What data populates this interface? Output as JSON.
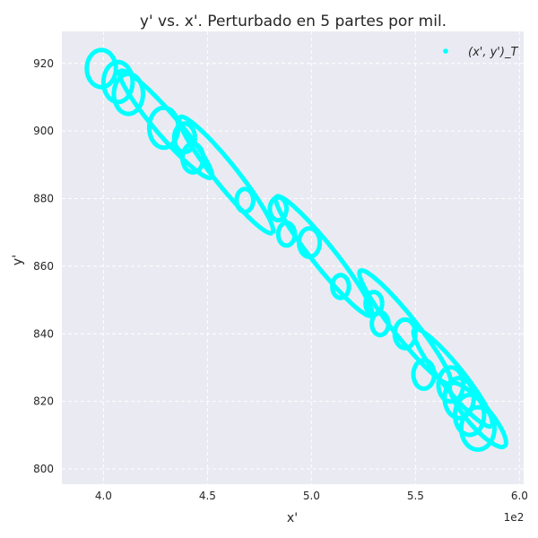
{
  "chart_data": {
    "type": "scatter",
    "title": "y' vs. x'. Perturbado en 5 partes por mil.",
    "xlabel": "x'",
    "ylabel": "y'",
    "x_offset_text": "1e2",
    "xlim": [
      3.8,
      6.02
    ],
    "ylim": [
      795.5,
      929.5
    ],
    "xticks": [
      "4.0",
      "4.5",
      "5.0",
      "5.5",
      "6.0"
    ],
    "yticks": [
      "800",
      "820",
      "840",
      "860",
      "880",
      "900",
      "920"
    ],
    "grid": true,
    "legend_position": "top-right",
    "series": [
      {
        "name": "(x', y')_T",
        "color": "#00FFFF",
        "loops": [
          {
            "cx": 3.99,
            "cy": 918.5,
            "r": 0.07,
            "sy": 2.6
          },
          {
            "cx": 4.07,
            "cy": 914.5,
            "r": 0.07,
            "sy": 2.8
          },
          {
            "cx": 4.12,
            "cy": 911.0,
            "r": 0.07,
            "sy": 2.8
          },
          {
            "cx": 4.29,
            "cy": 901.0,
            "r": 0.07,
            "sy": 2.8
          },
          {
            "cx": 4.39,
            "cy": 898.0,
            "r": 0.05,
            "sy": 2.8
          },
          {
            "cx": 4.43,
            "cy": 892.0,
            "r": 0.05,
            "sy": 2.8
          },
          {
            "cx": 4.68,
            "cy": 879.5,
            "r": 0.04,
            "sy": 2.8
          },
          {
            "cx": 4.84,
            "cy": 877.0,
            "r": 0.04,
            "sy": 2.8
          },
          {
            "cx": 4.88,
            "cy": 869.5,
            "r": 0.04,
            "sy": 2.8
          },
          {
            "cx": 4.99,
            "cy": 867.0,
            "r": 0.05,
            "sy": 2.8
          },
          {
            "cx": 5.14,
            "cy": 854.0,
            "r": 0.04,
            "sy": 2.8
          },
          {
            "cx": 5.3,
            "cy": 849.0,
            "r": 0.04,
            "sy": 2.8
          },
          {
            "cx": 5.33,
            "cy": 843.0,
            "r": 0.04,
            "sy": 2.8
          },
          {
            "cx": 5.45,
            "cy": 840.0,
            "r": 0.05,
            "sy": 2.8
          },
          {
            "cx": 5.54,
            "cy": 828.0,
            "r": 0.05,
            "sy": 2.8
          },
          {
            "cx": 5.67,
            "cy": 825.0,
            "r": 0.06,
            "sy": 2.8
          },
          {
            "cx": 5.71,
            "cy": 821.0,
            "r": 0.07,
            "sy": 2.8
          },
          {
            "cx": 5.76,
            "cy": 816.0,
            "r": 0.07,
            "sy": 2.8
          },
          {
            "cx": 5.8,
            "cy": 812.0,
            "r": 0.08,
            "sy": 2.6
          }
        ],
        "ellipses": [
          {
            "cx": 4.3,
            "cy": 902.0,
            "a": 0.34,
            "b": 0.055,
            "angle_deg": -50
          },
          {
            "cx": 4.59,
            "cy": 887.0,
            "a": 0.36,
            "b": 0.055,
            "angle_deg": -52
          },
          {
            "cx": 5.06,
            "cy": 863.0,
            "a": 0.37,
            "b": 0.055,
            "angle_deg": -52
          },
          {
            "cx": 5.45,
            "cy": 842.0,
            "a": 0.35,
            "b": 0.055,
            "angle_deg": -52
          },
          {
            "cx": 5.68,
            "cy": 827.0,
            "a": 0.3,
            "b": 0.055,
            "angle_deg": -52
          },
          {
            "cx": 5.8,
            "cy": 816.0,
            "a": 0.2,
            "b": 0.055,
            "angle_deg": -50
          }
        ]
      }
    ]
  },
  "legend": {
    "label": "(x', y')_T",
    "marker_color": "#00FFFF"
  }
}
